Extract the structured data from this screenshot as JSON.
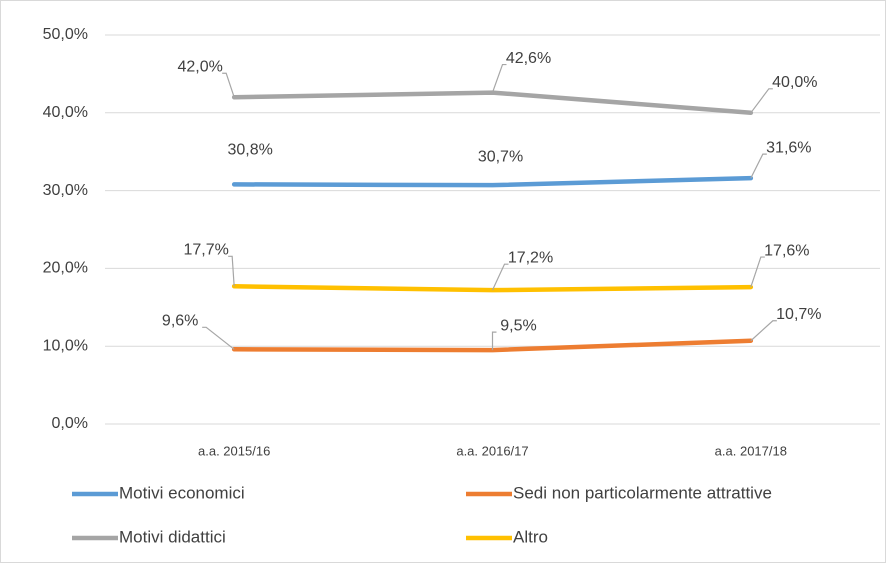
{
  "chart_data": {
    "type": "line",
    "categories": [
      "a.a. 2015/16",
      "a.a. 2016/17",
      "a.a. 2017/18"
    ],
    "series": [
      {
        "name": "Motivi economici",
        "color": "#5b9bd5",
        "values": [
          30.8,
          30.7,
          31.6
        ],
        "value_labels": [
          "30,8%",
          "30,7%",
          "31,6%"
        ]
      },
      {
        "name": "Sedi non particolarmente attrattive",
        "color": "#ed7d31",
        "values": [
          9.6,
          9.5,
          10.7
        ],
        "value_labels": [
          "9,6%",
          "9,5%",
          "10,7%"
        ]
      },
      {
        "name": "Motivi didattici",
        "color": "#a5a5a5",
        "values": [
          42.0,
          42.6,
          40.0
        ],
        "value_labels": [
          "42,0%",
          "42,6%",
          "40,0%"
        ]
      },
      {
        "name": "Altro",
        "color": "#ffc000",
        "values": [
          17.7,
          17.2,
          17.6
        ],
        "value_labels": [
          "17,7%",
          "17,2%",
          "17,6%"
        ]
      }
    ],
    "ylim": [
      0,
      50
    ],
    "yticks": [
      {
        "value": 0,
        "label": "0,0%"
      },
      {
        "value": 10,
        "label": "10,0%"
      },
      {
        "value": 20,
        "label": "20,0%"
      },
      {
        "value": 30,
        "label": "30,0%"
      },
      {
        "value": 40,
        "label": "40,0%"
      },
      {
        "value": 50,
        "label": "50,0%"
      }
    ],
    "grid": true
  }
}
